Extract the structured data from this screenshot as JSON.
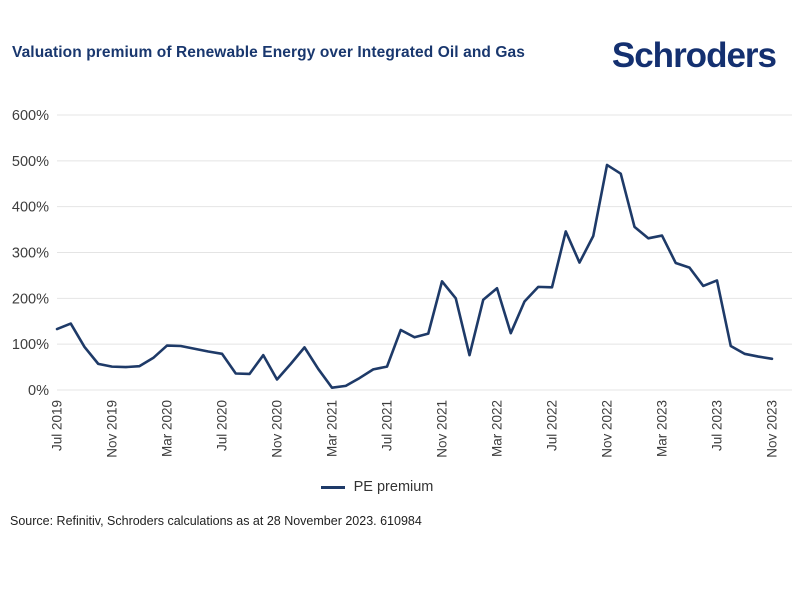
{
  "header": {
    "title": "Valuation premium of Renewable Energy over Integrated Oil and Gas",
    "logo_text": "Schroders"
  },
  "legend": {
    "label": "PE premium"
  },
  "footer": {
    "source": "Source: Refinitiv, Schroders calculations as at 28 November 2023. 610984"
  },
  "colors": {
    "line": "#1e3a68",
    "navy": "#19376e",
    "grid": "#e4e4e4",
    "axis_text": "#3d3d3d"
  },
  "chart_data": {
    "type": "line",
    "title": "Valuation premium of Renewable Energy over Integrated Oil and Gas",
    "xlabel": "",
    "ylabel": "",
    "ylim": [
      0,
      620
    ],
    "grid": "horizontal",
    "legend_position": "bottom",
    "y_ticks": [
      0,
      100,
      200,
      300,
      400,
      500,
      600
    ],
    "y_tick_suffix": "%",
    "x_tick_labels": [
      "Jul 2019",
      "Nov 2019",
      "Mar 2020",
      "Jul 2020",
      "Nov 2020",
      "Mar 2021",
      "Jul 2021",
      "Nov 2021",
      "Mar 2022",
      "Jul 2022",
      "Nov 2022",
      "Mar 2023",
      "Jul 2023",
      "Nov 2023"
    ],
    "x_tick_every": 4,
    "series": [
      {
        "name": "PE premium",
        "color": "#1e3a68",
        "x": [
          "Jul 2019",
          "Aug 2019",
          "Sep 2019",
          "Oct 2019",
          "Nov 2019",
          "Dec 2019",
          "Jan 2020",
          "Feb 2020",
          "Mar 2020",
          "Apr 2020",
          "May 2020",
          "Jun 2020",
          "Jul 2020",
          "Aug 2020",
          "Sep 2020",
          "Oct 2020",
          "Nov 2020",
          "Dec 2020",
          "Jan 2021",
          "Feb 2021",
          "Mar 2021",
          "Apr 2021",
          "May 2021",
          "Jun 2021",
          "Jul 2021",
          "Aug 2021",
          "Sep 2021",
          "Oct 2021",
          "Nov 2021",
          "Dec 2021",
          "Jan 2022",
          "Feb 2022",
          "Mar 2022",
          "Apr 2022",
          "May 2022",
          "Jun 2022",
          "Jul 2022",
          "Aug 2022",
          "Sep 2022",
          "Oct 2022",
          "Nov 2022",
          "Dec 2022",
          "Jan 2023",
          "Feb 2023",
          "Mar 2023",
          "Apr 2023",
          "May 2023",
          "Jun 2023",
          "Jul 2023",
          "Aug 2023",
          "Sep 2023",
          "Oct 2023",
          "Nov 2023"
        ],
        "values": [
          133,
          145,
          94,
          57,
          51,
          50,
          52,
          70,
          97,
          96,
          90,
          84,
          79,
          36,
          35,
          76,
          23,
          57,
          93,
          46,
          5,
          9,
          26,
          45,
          51,
          131,
          115,
          123,
          237,
          200,
          76,
          197,
          222,
          124,
          193,
          225,
          224,
          346,
          278,
          336,
          491,
          472,
          356,
          331,
          337,
          277,
          267,
          227,
          239,
          96,
          79,
          73,
          68
        ]
      }
    ]
  }
}
